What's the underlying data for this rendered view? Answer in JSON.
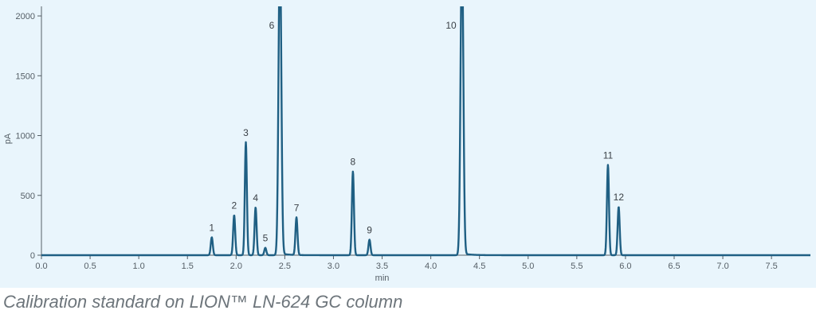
{
  "caption": "Calibration standard on LION™ LN-624 GC column",
  "colors": {
    "plot_background": "#e9f5fc",
    "trace": "#1f5f83",
    "axis": "#555e66",
    "text": "#3a4046"
  },
  "chart_data": {
    "type": "line",
    "title": "",
    "xlabel": "min",
    "ylabel": "pA",
    "xlim": [
      0.0,
      7.9
    ],
    "ylim": [
      0,
      2080
    ],
    "grid": false,
    "x_ticks": [
      0.0,
      0.5,
      1.0,
      1.5,
      2.0,
      2.5,
      3.0,
      3.5,
      4.0,
      4.5,
      5.0,
      5.5,
      6.0,
      6.5,
      7.0,
      7.5
    ],
    "x_tick_labels": [
      "0.0",
      "0.5",
      "1.0",
      "1.5",
      "2.0",
      "2.5",
      "3.0",
      "3.5",
      "4.0",
      "4.5",
      "5.0",
      "5.5",
      "6.0",
      "6.5",
      "7.0",
      "7.5"
    ],
    "y_ticks": [
      0,
      500,
      1000,
      1500,
      2000
    ],
    "y_tick_labels": [
      "0",
      "500",
      "1000",
      "1500",
      "2000"
    ],
    "baseline": 0,
    "peaks": [
      {
        "label": "1",
        "rt": 1.75,
        "height": 150
      },
      {
        "label": "2",
        "rt": 1.98,
        "height": 335
      },
      {
        "label": "3",
        "rt": 2.1,
        "height": 945
      },
      {
        "label": "4",
        "rt": 2.2,
        "height": 400
      },
      {
        "label": "5",
        "rt": 2.3,
        "height": 62
      },
      {
        "label": "6",
        "rt": 2.45,
        "height": 2600
      },
      {
        "label": "7",
        "rt": 2.62,
        "height": 315
      },
      {
        "label": "8",
        "rt": 3.2,
        "height": 700
      },
      {
        "label": "9",
        "rt": 3.37,
        "height": 130
      },
      {
        "label": "10",
        "rt": 4.32,
        "height": 2600
      },
      {
        "label": "11",
        "rt": 5.82,
        "height": 755
      },
      {
        "label": "12",
        "rt": 5.93,
        "height": 405
      }
    ]
  }
}
